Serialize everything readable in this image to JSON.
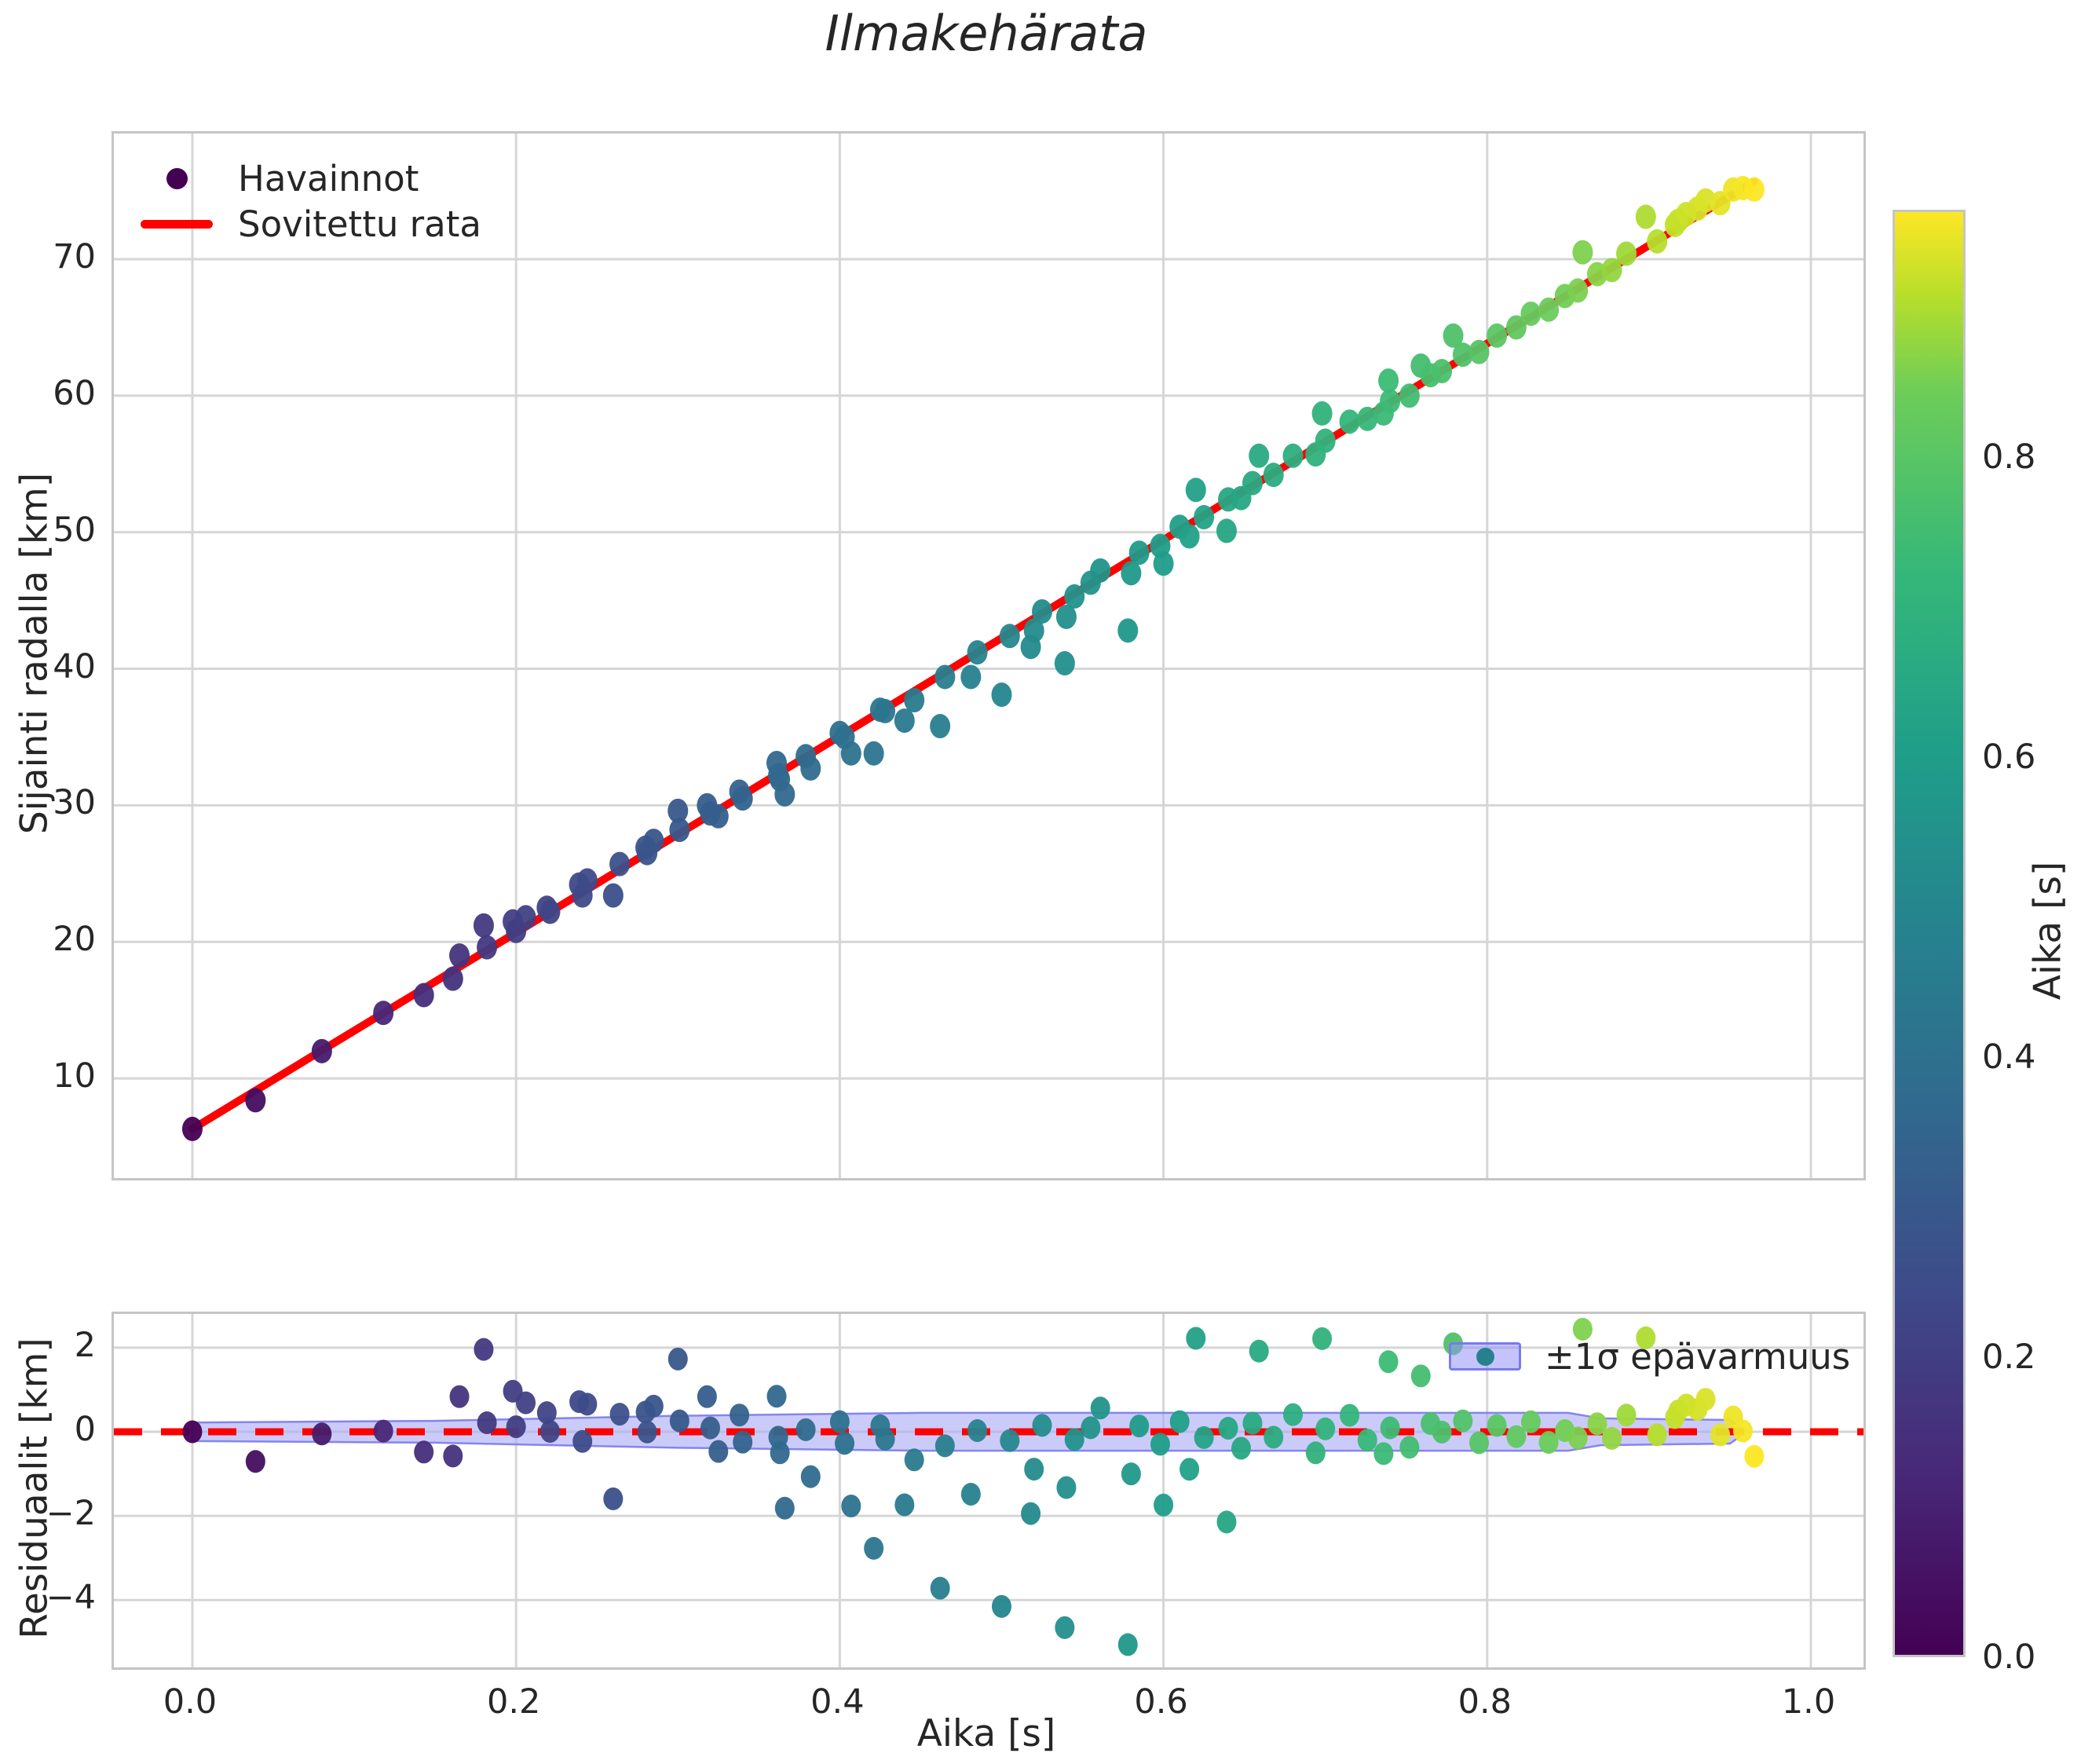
{
  "title": "Ilmakehärata",
  "style": {
    "background": "#ffffff",
    "text_color": "#262626",
    "grid_color": "#d6d6d6",
    "spine_color": "#c5c5c5",
    "fit_line_color": "#ff0000",
    "zero_line_color": "#ff0000",
    "band_fill": "#a9a9f7",
    "band_edge": "#7a7aee",
    "observations_marker_color": "#440154",
    "band_legend_dot_color": "#27808e",
    "colormap": "viridis"
  },
  "main_chart": {
    "ylabel": "Sijainti radalla [km]",
    "legend": {
      "observations": "Havainnot",
      "fit": "Sovitettu rata"
    }
  },
  "residual_chart": {
    "ylabel": "Residuaalit [km]",
    "legend": "±1σ epävarmuus"
  },
  "xaxis": {
    "label": "Aika [s]",
    "tick_values": [
      0,
      0.2,
      0.4,
      0.6,
      0.8,
      1.0
    ],
    "tick_labels": [
      "0.0",
      "0.2",
      "0.4",
      "0.6",
      "0.8",
      "1.0"
    ]
  },
  "colorbar": {
    "label": "Aika [s]",
    "tick_values": [
      0,
      0.2,
      0.4,
      0.6,
      0.8
    ],
    "tick_labels": [
      "0.0",
      "0.2",
      "0.4",
      "0.6",
      "0.8"
    ],
    "vmin": 0,
    "vmax": 0.965
  },
  "chart_data": [
    {
      "type": "scatter",
      "title": "Ilmakehärata",
      "xlabel": "Aika [s]",
      "ylabel": "Sijainti radalla [km]",
      "xlim": [
        -0.0485,
        1.0325
      ],
      "ylim": [
        2.7,
        79.2
      ],
      "yticks": [
        10,
        20,
        30,
        40,
        50,
        60,
        70
      ],
      "ytick_labels": [
        "10",
        "20",
        "30",
        "40",
        "50",
        "60",
        "70"
      ],
      "grid": true,
      "legend_position": "upper left",
      "legend_entries": [
        "Havainnot",
        "Sovitettu rata"
      ],
      "color_by": "t",
      "color_range": [
        0,
        0.965
      ],
      "fit_line": {
        "label": "Sovitettu rata",
        "slope_km_per_s": 71.9,
        "intercept_km": 6.3,
        "t_start": 0.0,
        "t_end": 0.965
      },
      "points_t_s": [
        [
          0.0,
          6.3
        ],
        [
          0.039,
          8.4
        ],
        [
          0.08,
          12.0
        ],
        [
          0.118,
          14.8
        ],
        [
          0.143,
          16.1
        ],
        [
          0.161,
          17.3
        ],
        [
          0.165,
          19.0
        ],
        [
          0.18,
          21.2
        ],
        [
          0.182,
          19.6
        ],
        [
          0.198,
          21.5
        ],
        [
          0.2,
          20.8
        ],
        [
          0.206,
          21.8
        ],
        [
          0.219,
          22.5
        ],
        [
          0.221,
          22.2
        ],
        [
          0.239,
          24.2
        ],
        [
          0.241,
          23.4
        ],
        [
          0.244,
          24.5
        ],
        [
          0.26,
          23.4
        ],
        [
          0.264,
          25.7
        ],
        [
          0.28,
          26.9
        ],
        [
          0.281,
          26.5
        ],
        [
          0.285,
          27.4
        ],
        [
          0.3,
          29.6
        ],
        [
          0.301,
          28.2
        ],
        [
          0.318,
          30.0
        ],
        [
          0.32,
          29.4
        ],
        [
          0.325,
          29.2
        ],
        [
          0.338,
          31.0
        ],
        [
          0.34,
          30.5
        ],
        [
          0.361,
          33.1
        ],
        [
          0.362,
          32.2
        ],
        [
          0.363,
          31.9
        ],
        [
          0.366,
          30.8
        ],
        [
          0.379,
          33.6
        ],
        [
          0.382,
          32.7
        ],
        [
          0.4,
          35.3
        ],
        [
          0.403,
          35.0
        ],
        [
          0.407,
          33.8
        ],
        [
          0.421,
          33.8
        ],
        [
          0.425,
          37.0
        ],
        [
          0.428,
          36.9
        ],
        [
          0.44,
          36.2
        ],
        [
          0.446,
          37.7
        ],
        [
          0.462,
          35.8
        ],
        [
          0.465,
          39.4
        ],
        [
          0.481,
          39.4
        ],
        [
          0.485,
          41.2
        ],
        [
          0.5,
          38.1
        ],
        [
          0.505,
          42.4
        ],
        [
          0.518,
          41.6
        ],
        [
          0.52,
          42.8
        ],
        [
          0.525,
          44.2
        ],
        [
          0.539,
          40.4
        ],
        [
          0.54,
          43.8
        ],
        [
          0.545,
          45.3
        ],
        [
          0.555,
          46.3
        ],
        [
          0.561,
          47.2
        ],
        [
          0.578,
          42.8
        ],
        [
          0.58,
          47.0
        ],
        [
          0.585,
          48.5
        ],
        [
          0.598,
          49.0
        ],
        [
          0.6,
          47.7
        ],
        [
          0.61,
          50.4
        ],
        [
          0.616,
          49.7
        ],
        [
          0.62,
          53.1
        ],
        [
          0.625,
          51.1
        ],
        [
          0.639,
          50.1
        ],
        [
          0.64,
          52.4
        ],
        [
          0.648,
          52.5
        ],
        [
          0.655,
          53.6
        ],
        [
          0.659,
          55.6
        ],
        [
          0.668,
          54.2
        ],
        [
          0.68,
          55.6
        ],
        [
          0.694,
          55.7
        ],
        [
          0.698,
          58.7
        ],
        [
          0.7,
          56.7
        ],
        [
          0.715,
          58.1
        ],
        [
          0.726,
          58.3
        ],
        [
          0.736,
          58.7
        ],
        [
          0.739,
          61.1
        ],
        [
          0.74,
          59.6
        ],
        [
          0.752,
          60.0
        ],
        [
          0.759,
          62.2
        ],
        [
          0.765,
          61.5
        ],
        [
          0.772,
          61.8
        ],
        [
          0.779,
          64.4
        ],
        [
          0.785,
          63.0
        ],
        [
          0.795,
          63.2
        ],
        [
          0.806,
          64.4
        ],
        [
          0.818,
          65.0
        ],
        [
          0.827,
          66.0
        ],
        [
          0.838,
          66.3
        ],
        [
          0.848,
          67.3
        ],
        [
          0.856,
          67.7
        ],
        [
          0.859,
          70.5
        ],
        [
          0.868,
          68.9
        ],
        [
          0.877,
          69.2
        ],
        [
          0.886,
          70.4
        ],
        [
          0.898,
          73.1
        ],
        [
          0.905,
          71.3
        ],
        [
          0.916,
          72.5
        ],
        [
          0.918,
          72.8
        ],
        [
          0.923,
          73.3
        ],
        [
          0.93,
          73.7
        ],
        [
          0.935,
          74.3
        ],
        [
          0.944,
          74.1
        ],
        [
          0.952,
          75.1
        ],
        [
          0.958,
          75.2
        ],
        [
          0.965,
          75.1
        ]
      ]
    },
    {
      "type": "scatter",
      "xlabel": "Aika [s]",
      "ylabel": "Residuaalit [km]",
      "xlim": [
        -0.0485,
        1.0325
      ],
      "ylim": [
        -5.6,
        2.8
      ],
      "yticks": [
        2,
        0,
        -2,
        -4
      ],
      "ytick_labels": [
        "2",
        "0",
        "−2",
        "−4"
      ],
      "grid": true,
      "zero_line": {
        "y": 0,
        "color": "#ff0000",
        "style": "dashed"
      },
      "residual_rule": "residual = s − (6.3 + 71.9·t)",
      "band": {
        "label": "±1σ epävarmuus",
        "t": [
          0.0,
          0.15,
          0.3,
          0.45,
          0.85,
          0.87,
          0.95,
          0.956
        ],
        "halfwidth_km": [
          0.22,
          0.26,
          0.38,
          0.45,
          0.45,
          0.32,
          0.28,
          0.12
        ]
      }
    }
  ]
}
